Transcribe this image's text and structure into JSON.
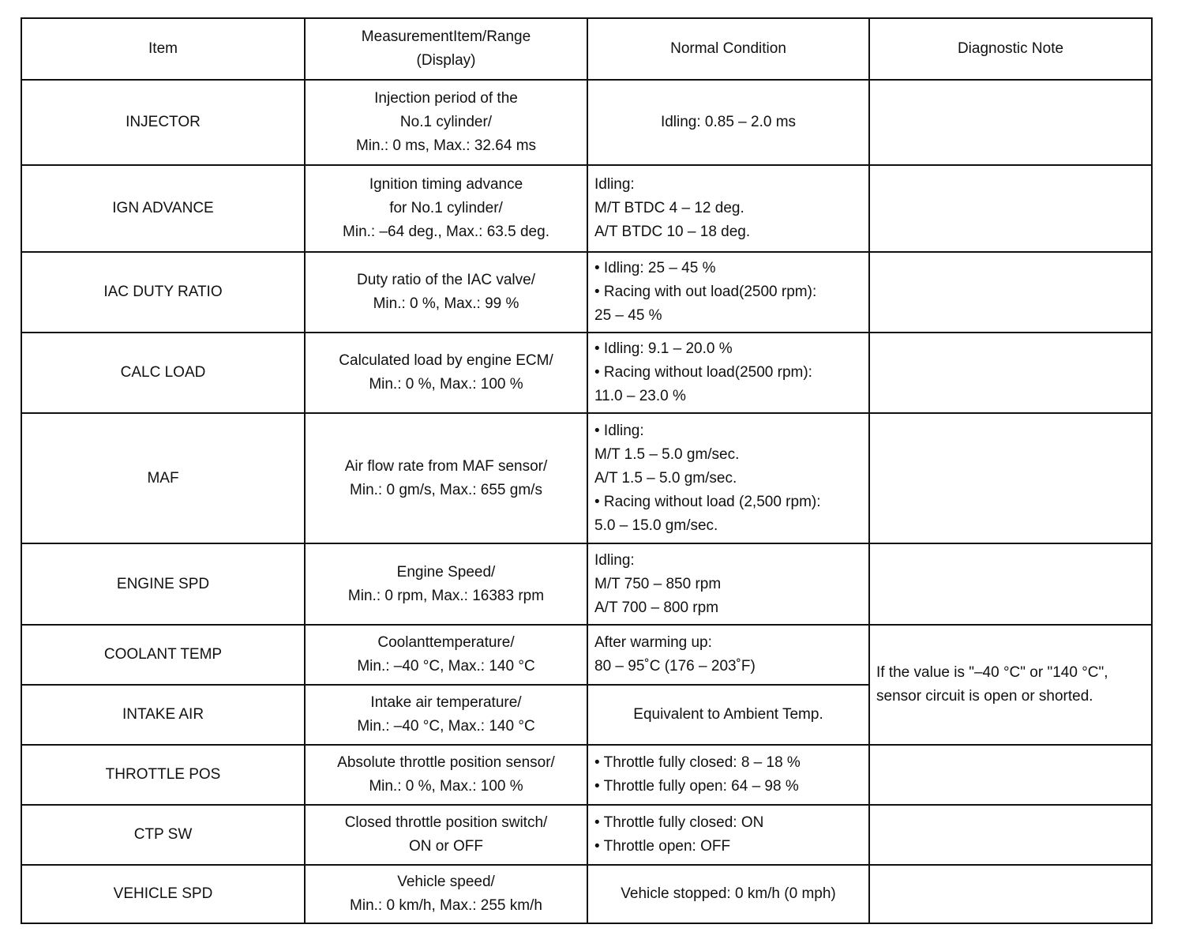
{
  "headers": [
    "Item",
    "MeasurementItem/Range\n(Display)",
    "Normal Condition",
    "Diagnostic Note"
  ],
  "rows": [
    {
      "item": "INJECTOR",
      "range": "Injection period of the\nNo.1 cylinder/\nMin.: 0 ms, Max.: 32.64 ms",
      "normal": "Idling: 0.85 – 2.0 ms",
      "note": ""
    },
    {
      "item": "IGN ADVANCE",
      "range": "Ignition timing advance\nfor No.1 cylinder/\nMin.: –64 deg., Max.: 63.5 deg.",
      "normal": "Idling:\nM/T BTDC 4 – 12 deg.\nA/T BTDC 10 – 18 deg.",
      "note": ""
    },
    {
      "item": "IAC DUTY RATIO",
      "range": "Duty ratio of the IAC valve/\nMin.: 0 %, Max.: 99 %",
      "normal": "• Idling: 25 – 45 %\n• Racing with out load(2500 rpm):\n   25 – 45 %",
      "note": ""
    },
    {
      "item": "CALC LOAD",
      "range": "Calculated load by engine ECM/\nMin.: 0 %, Max.: 100 %",
      "normal": "• Idling: 9.1 – 20.0 %\n• Racing without load(2500 rpm):\n   11.0 – 23.0 %",
      "note": ""
    },
    {
      "item": "MAF",
      "range": "Air flow rate from MAF sensor/\nMin.: 0 gm/s, Max.: 655 gm/s",
      "normal": "• Idling:\n   M/T 1.5 – 5.0 gm/sec.\n   A/T 1.5 – 5.0 gm/sec.\n• Racing without load (2,500 rpm):\n   5.0 – 15.0 gm/sec.",
      "note": ""
    },
    {
      "item": "ENGINE SPD",
      "range": "Engine Speed/\nMin.: 0 rpm, Max.: 16383 rpm",
      "normal": "Idling:\nM/T 750 – 850 rpm\nA/T 700 – 800 rpm",
      "note": ""
    },
    {
      "item": "COOLANT TEMP",
      "range": "Coolanttemperature/\nMin.: –40 °C, Max.: 140 °C",
      "normal": "After warming up:\n80 – 95˚C (176 – 203˚F)",
      "note": "If the value is \"–40 °C\" or \"140 °C\", sensor circuit is open or shorted."
    },
    {
      "item": "INTAKE AIR",
      "range": "Intake air temperature/\nMin.: –40 °C, Max.: 140 °C",
      "normal": "Equivalent to Ambient Temp."
    },
    {
      "item": "THROTTLE POS",
      "range": "Absolute throttle position sensor/\nMin.: 0 %, Max.: 100 %",
      "normal": "• Throttle fully closed: 8  – 18 %\n• Throttle fully open: 64 – 98 %",
      "note": ""
    },
    {
      "item": "CTP SW",
      "range": "Closed throttle position switch/\nON or OFF",
      "normal": "• Throttle fully closed: ON\n• Throttle open: OFF",
      "note": ""
    },
    {
      "item": "VEHICLE SPD",
      "range": "Vehicle speed/\nMin.: 0 km/h, Max.: 255 km/h",
      "normal": "Vehicle stopped: 0 km/h (0 mph)",
      "note": ""
    }
  ]
}
